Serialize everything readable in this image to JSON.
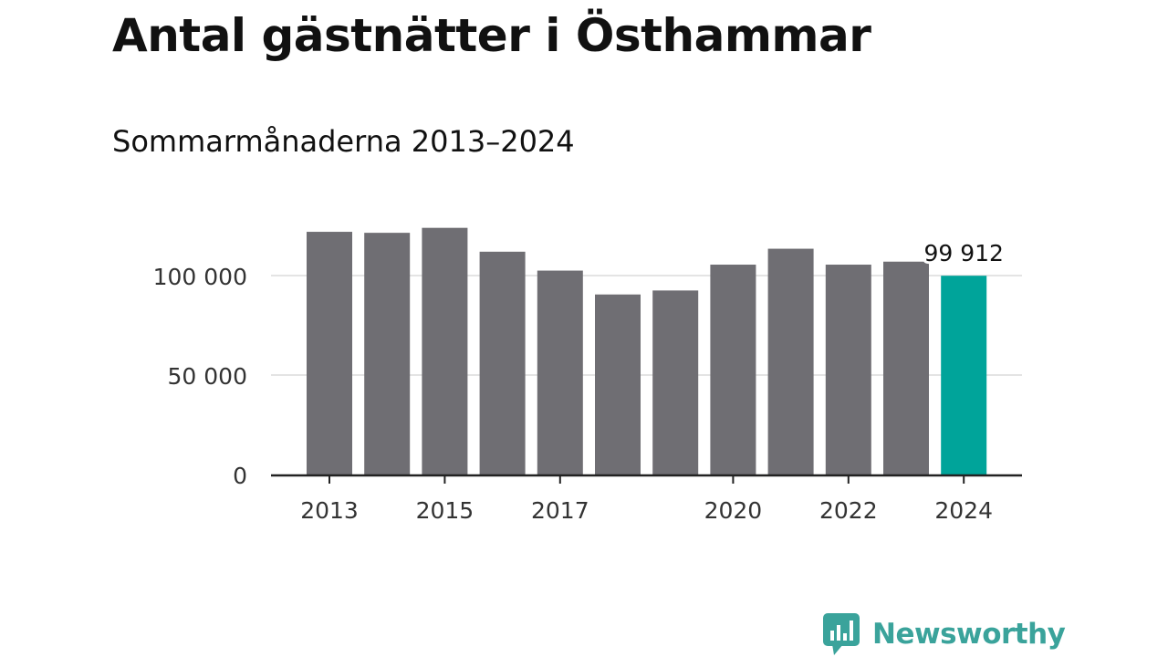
{
  "chart_data": {
    "type": "bar",
    "title": "Antal gästnätter i Östhammar",
    "subtitle": "Sommarmånaderna 2013–2024",
    "categories": [
      "2013",
      "2014",
      "2015",
      "2016",
      "2017",
      "2018",
      "2019",
      "2020",
      "2021",
      "2022",
      "2023",
      "2024"
    ],
    "values": [
      122000,
      121500,
      124000,
      112000,
      102500,
      90500,
      92500,
      105500,
      113500,
      105500,
      107000,
      99912
    ],
    "x_tick_labels": [
      "2013",
      "2015",
      "2017",
      "2020",
      "2022",
      "2024"
    ],
    "y_ticks": [
      0,
      50000,
      100000
    ],
    "y_tick_labels": [
      "0",
      "50 000",
      "100 000"
    ],
    "ylim": [
      0,
      125000
    ],
    "highlight": {
      "category": "2024",
      "label": "99 912"
    },
    "colors": {
      "bar": "#6f6e73",
      "highlight": "#00a49a",
      "grid": "#dcdcdc",
      "axis": "#222222"
    },
    "grid": true,
    "legend": "none"
  },
  "brand": {
    "name": "Newsworthy",
    "color": "#3aa39b"
  }
}
